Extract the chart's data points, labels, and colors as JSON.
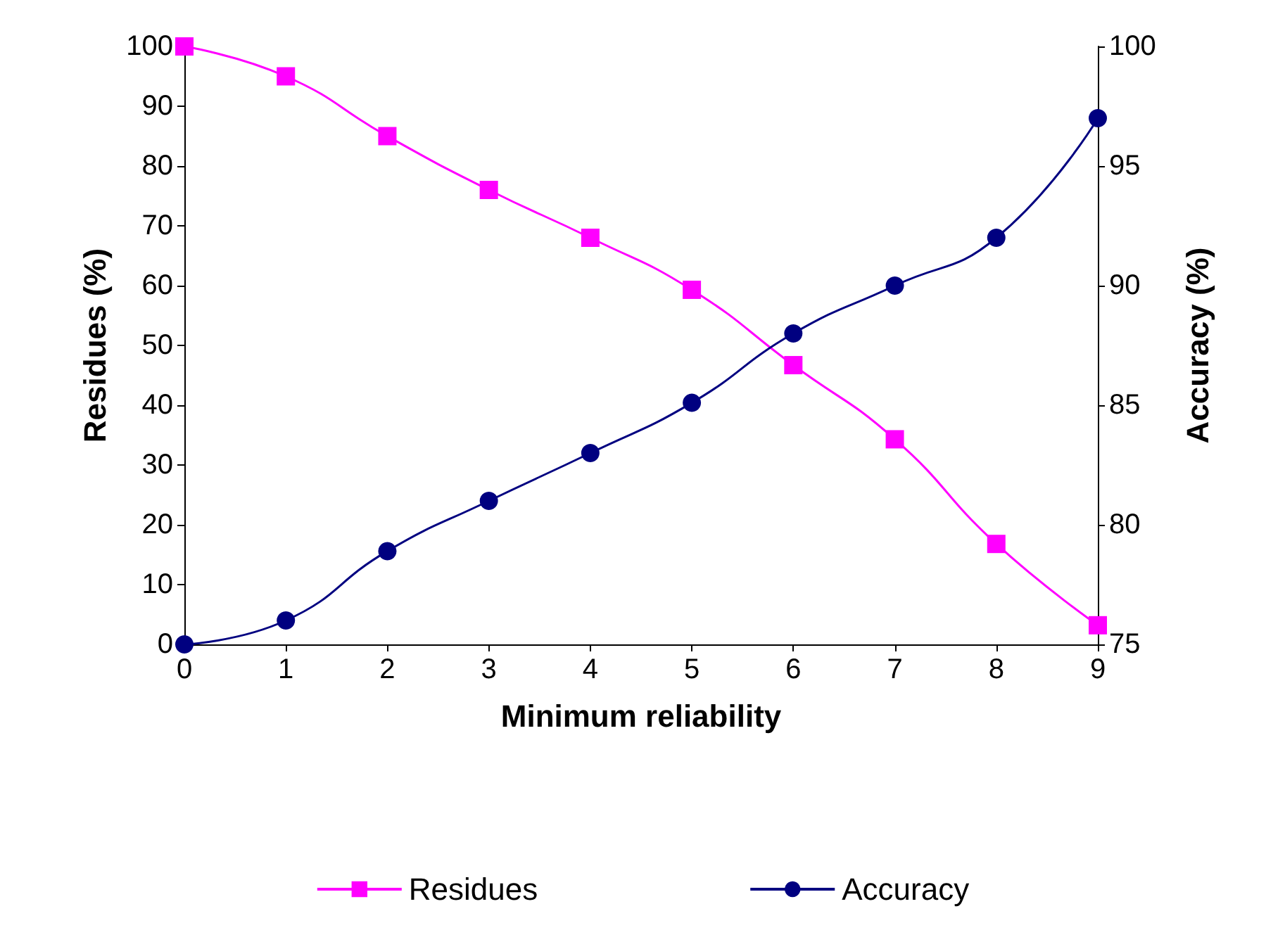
{
  "chart_data": {
    "type": "line",
    "xlabel": "Minimum reliability",
    "ylabel": "Residues (%)",
    "y2label": "Accuracy (%)",
    "x": [
      0,
      1,
      2,
      3,
      4,
      5,
      6,
      7,
      8,
      9
    ],
    "xlim": [
      0,
      9
    ],
    "xticks": [
      0,
      1,
      2,
      3,
      4,
      5,
      6,
      7,
      8,
      9
    ],
    "ylim": [
      0,
      100
    ],
    "yticks": [
      0,
      10,
      20,
      30,
      40,
      50,
      60,
      70,
      80,
      90,
      100
    ],
    "y2lim": [
      75,
      100
    ],
    "y2ticks": [
      75,
      80,
      85,
      90,
      95,
      100
    ],
    "series": [
      {
        "name": "Residues",
        "color": "#ff00ff",
        "marker": "square",
        "values": [
          100,
          95,
          85,
          76,
          68,
          59.3,
          46.7,
          34.3,
          16.8,
          3.2
        ]
      },
      {
        "name": "Accuracy",
        "color": "#000080",
        "marker": "circle",
        "axis": "y2",
        "values": [
          75,
          76,
          78.9,
          81,
          83,
          85.1,
          88,
          90,
          92,
          97
        ]
      }
    ],
    "grid": false,
    "legend": "bottom",
    "line_style": "solid"
  }
}
